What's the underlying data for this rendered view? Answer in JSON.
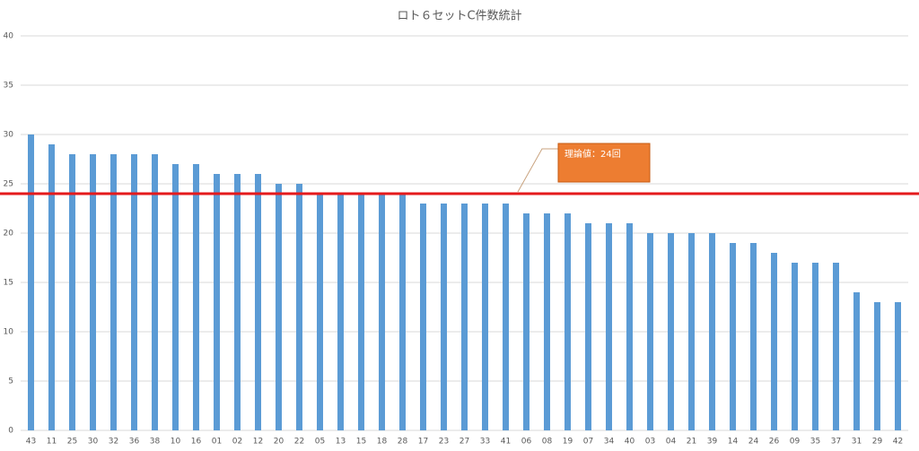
{
  "chart_data": {
    "type": "bar",
    "title": "ロト６セットC件数統計",
    "categories": [
      "43",
      "11",
      "25",
      "30",
      "32",
      "36",
      "38",
      "10",
      "16",
      "01",
      "02",
      "12",
      "20",
      "22",
      "05",
      "13",
      "15",
      "18",
      "28",
      "17",
      "23",
      "27",
      "33",
      "41",
      "06",
      "08",
      "19",
      "07",
      "34",
      "40",
      "03",
      "04",
      "21",
      "39",
      "14",
      "24",
      "26",
      "09",
      "35",
      "37",
      "31",
      "29",
      "42"
    ],
    "values": [
      30,
      29,
      28,
      28,
      28,
      28,
      28,
      27,
      27,
      26,
      26,
      26,
      25,
      25,
      24,
      24,
      24,
      24,
      24,
      23,
      23,
      23,
      23,
      23,
      22,
      22,
      22,
      21,
      21,
      21,
      20,
      20,
      20,
      20,
      19,
      19,
      18,
      17,
      17,
      17,
      14,
      13,
      13
    ],
    "color": "#5b9bd5",
    "ylim": [
      0,
      40
    ],
    "yticks": [
      0,
      5,
      10,
      15,
      20,
      25,
      30,
      35,
      40
    ],
    "grid": true,
    "reference_line": {
      "value": 24,
      "color": "#e41a1c"
    },
    "annotation": {
      "text": "理論値：24回",
      "color": "#ed7d31"
    }
  }
}
